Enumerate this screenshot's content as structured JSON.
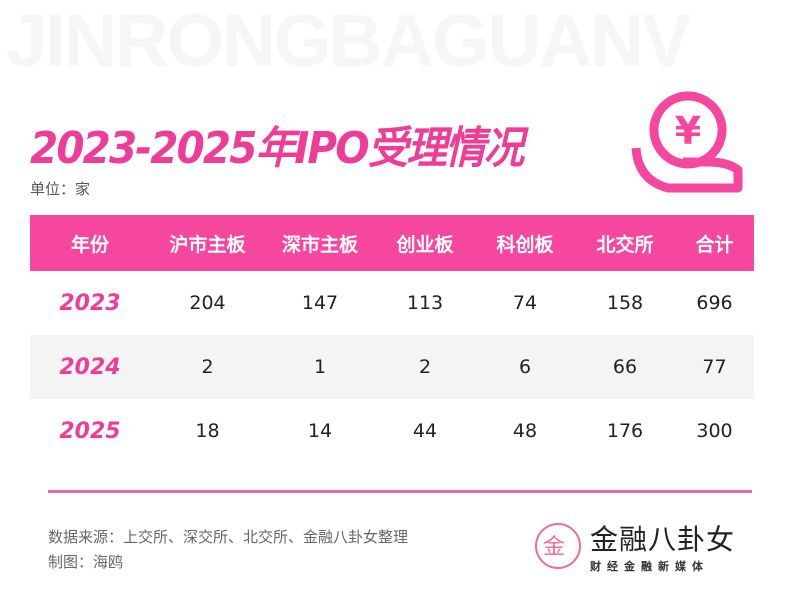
{
  "watermark": "JINRONGBAGUANV",
  "title": "2023-2025年IPO受理情况",
  "unit": "单位：家",
  "colors": {
    "accent": "#f5479e",
    "year": "#ee3d96"
  },
  "icon": "yen-coin-hand-icon",
  "chart_data": {
    "type": "table",
    "columns": [
      "年份",
      "沪市主板",
      "深市主板",
      "创业板",
      "科创板",
      "北交所",
      "合计"
    ],
    "rows": [
      [
        "2023",
        "204",
        "147",
        "113",
        "74",
        "158",
        "696"
      ],
      [
        "2024",
        "2",
        "1",
        "2",
        "6",
        "66",
        "77"
      ],
      [
        "2025",
        "18",
        "14",
        "44",
        "48",
        "176",
        "300"
      ]
    ]
  },
  "footer": {
    "source": "数据来源：上交所、深交所、北交所、金融八卦女整理",
    "author": "制图：海鸥"
  },
  "logo": {
    "name": "金融八卦女",
    "tagline": "财经金融新媒体"
  }
}
